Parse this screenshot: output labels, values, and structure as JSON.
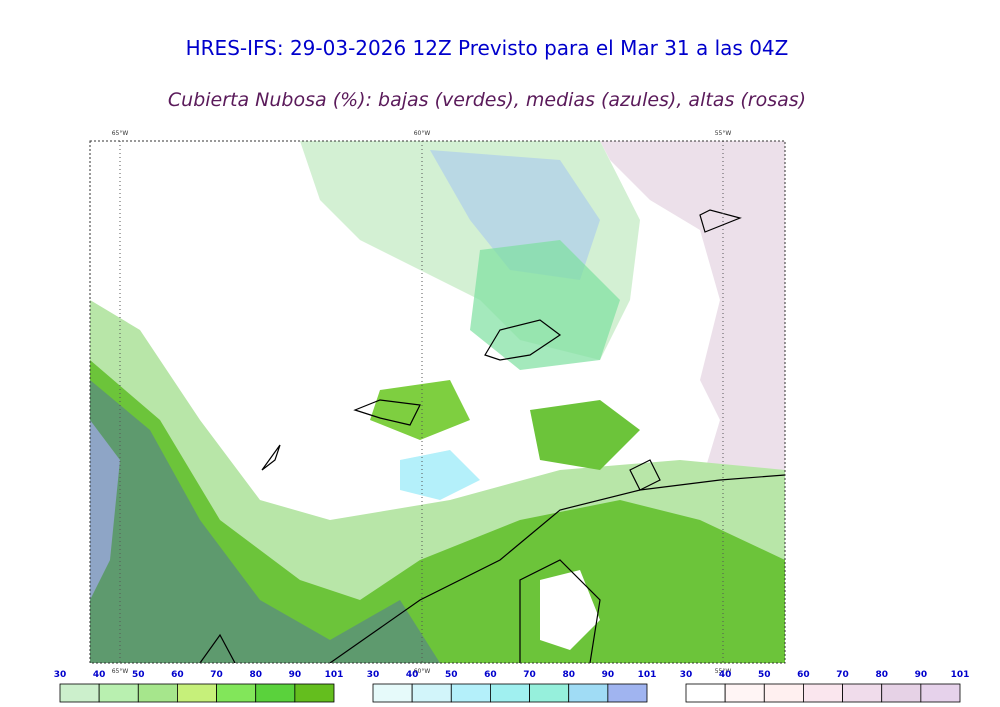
{
  "header": {
    "title": "HRES-IFS: 29-03-2026 12Z Previsto para el Mar 31 a las 04Z",
    "subtitle": "Cubierta Nubosa (%): bajas (verdes), medias (azules), altas (rosas)"
  },
  "map": {
    "lon_labels": [
      "65°W",
      "60°W",
      "55°W"
    ]
  },
  "legends": [
    {
      "labels": [
        30,
        40,
        50,
        60,
        70,
        80,
        90,
        101
      ],
      "colors": [
        "#ccf0cc",
        "#b9f0b0",
        "#a6e68c",
        "#c6f07a",
        "#82e65a",
        "#5ad23c",
        "#64be1e"
      ]
    },
    {
      "labels": [
        30,
        40,
        50,
        60,
        70,
        80,
        90,
        101
      ],
      "colors": [
        "#e6fafa",
        "#d2f5fa",
        "#b4f0fa",
        "#a0f0f0",
        "#96f0dc",
        "#a0dcf5",
        "#a0b4f0"
      ]
    },
    {
      "labels": [
        30,
        40,
        50,
        60,
        70,
        80,
        90,
        101
      ],
      "colors": [
        "#ffffff",
        "#fff5f5",
        "#fff0f0",
        "#fae6ee",
        "#f0dceb",
        "#e6d2e6",
        "#e6d2eb"
      ]
    }
  ]
}
